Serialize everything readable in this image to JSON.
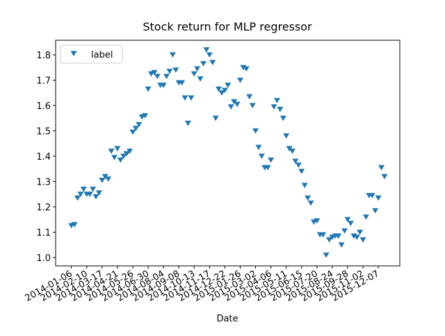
{
  "chart_data": {
    "type": "scatter",
    "title": "Stock return for MLP regressor",
    "x_label": "Date",
    "marker": "triangle-down",
    "legend": "upper left",
    "x": [
      "2014-01-06",
      "2014-01-13",
      "2014-01-20",
      "2014-01-27",
      "2014-02-03",
      "2014-02-10",
      "2014-02-17",
      "2014-02-24",
      "2014-03-03",
      "2014-03-10",
      "2014-03-17",
      "2014-03-24",
      "2014-03-31",
      "2014-04-07",
      "2014-04-14",
      "2014-04-21",
      "2014-04-28",
      "2014-05-05",
      "2014-05-12",
      "2014-05-19",
      "2014-05-26",
      "2014-06-02",
      "2014-06-09",
      "2014-06-16",
      "2014-06-23",
      "2014-06-30",
      "2014-07-07",
      "2014-07-14",
      "2014-07-21",
      "2014-07-28",
      "2014-08-04",
      "2014-08-11",
      "2014-08-18",
      "2014-08-25",
      "2014-09-01",
      "2014-09-08",
      "2014-09-15",
      "2014-09-22",
      "2014-09-29",
      "2014-10-06",
      "2014-10-13",
      "2014-10-20",
      "2014-10-27",
      "2014-11-03",
      "2014-11-10",
      "2014-11-17",
      "2014-11-24",
      "2014-12-01",
      "2014-12-08",
      "2014-12-15",
      "2014-12-22",
      "2014-12-29",
      "2015-01-05",
      "2015-01-12",
      "2015-01-19",
      "2015-01-26",
      "2015-02-02",
      "2015-02-09",
      "2015-02-16",
      "2015-02-23",
      "2015-03-02",
      "2015-03-09",
      "2015-03-16",
      "2015-03-23",
      "2015-03-30",
      "2015-04-06",
      "2015-04-13",
      "2015-04-20",
      "2015-04-27",
      "2015-05-04",
      "2015-05-11",
      "2015-05-18",
      "2015-05-25",
      "2015-06-01",
      "2015-06-08",
      "2015-06-15",
      "2015-06-22",
      "2015-06-29",
      "2015-07-06",
      "2015-07-13",
      "2015-07-20",
      "2015-07-27",
      "2015-08-03",
      "2015-08-10",
      "2015-08-17",
      "2015-08-24",
      "2015-08-31",
      "2015-09-07",
      "2015-09-14",
      "2015-09-21",
      "2015-09-28",
      "2015-10-05",
      "2015-10-12",
      "2015-10-19",
      "2015-10-26",
      "2015-11-02",
      "2015-11-09",
      "2015-11-16",
      "2015-11-23",
      "2015-11-30",
      "2015-12-07",
      "2015-12-14",
      "2015-12-21"
    ],
    "series": [
      {
        "name": "label",
        "color": "#1f77b4",
        "values": [
          1.126,
          1.13,
          1.235,
          1.25,
          1.27,
          1.25,
          1.25,
          1.27,
          1.24,
          1.255,
          1.305,
          1.32,
          1.31,
          1.42,
          1.395,
          1.43,
          1.385,
          1.4,
          1.41,
          1.42,
          1.495,
          1.51,
          1.525,
          1.555,
          1.56,
          1.665,
          1.725,
          1.73,
          1.715,
          1.68,
          1.68,
          1.715,
          1.735,
          1.8,
          1.74,
          1.69,
          1.69,
          1.63,
          1.53,
          1.63,
          1.725,
          1.745,
          1.705,
          1.765,
          1.82,
          1.8,
          1.77,
          1.55,
          1.665,
          1.65,
          1.66,
          1.68,
          1.595,
          1.615,
          1.605,
          1.7,
          1.75,
          1.745,
          1.635,
          1.6,
          1.5,
          1.435,
          1.4,
          1.355,
          1.355,
          1.385,
          1.595,
          1.62,
          1.585,
          1.55,
          1.48,
          1.43,
          1.42,
          1.38,
          1.365,
          1.34,
          1.285,
          1.235,
          1.215,
          1.14,
          1.145,
          1.09,
          1.09,
          1.01,
          1.07,
          1.08,
          1.085,
          1.085,
          1.05,
          1.105,
          1.15,
          1.135,
          1.085,
          1.08,
          1.1,
          1.07,
          1.16,
          1.245,
          1.245,
          1.185,
          1.235,
          1.355,
          1.32
        ]
      }
    ],
    "xlim": [
      "2013-12-01",
      "2016-01-25"
    ],
    "xticks": [
      "2014-01-06",
      "2014-02-10",
      "2014-03-17",
      "2014-04-21",
      "2014-05-26",
      "2014-06-30",
      "2014-08-04",
      "2014-09-08",
      "2014-10-13",
      "2014-11-17",
      "2014-12-22",
      "2015-01-26",
      "2015-03-02",
      "2015-04-06",
      "2015-05-11",
      "2015-06-15",
      "2015-07-20",
      "2015-08-24",
      "2015-09-28",
      "2015-11-02",
      "2015-12-07"
    ],
    "ylim": [
      0.967,
      1.8575
    ],
    "yticks": [
      {
        "value": 1,
        "label": "1.0"
      },
      1.1,
      1.2,
      1.3,
      1.4,
      1.5,
      1.6,
      1.7,
      1.8
    ]
  }
}
